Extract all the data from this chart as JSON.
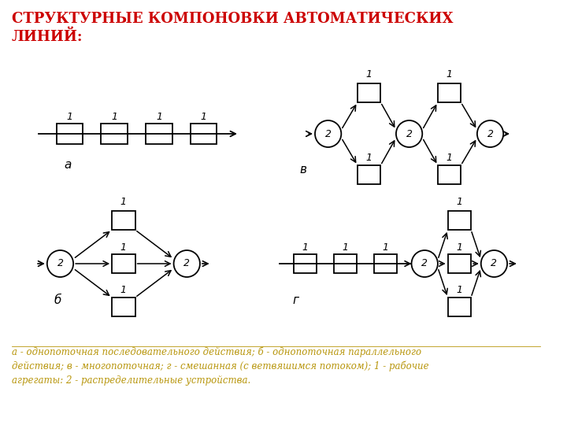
{
  "title": "СТРУКТУРНЫЕ КОМПОНОВКИ АВТОМАТИЧЕСКИХ\nЛИНИЙ:",
  "title_color": "#cc0000",
  "title_fontsize": 13,
  "caption": "а - однопоточная последовательного действия; б - однопоточная параллельного\nдействия; в - многопоточная; г - смешанная (с ветвяшимся потоком); 1 - рабочие\nагрегаты: 2 - распределительные устройства.",
  "caption_color": "#b8960c",
  "caption_fontsize": 8.5,
  "bg_color": "#ffffff",
  "diagram_color": "#000000",
  "label_a": "а",
  "label_b": "б",
  "label_v": "в",
  "label_g": "г"
}
